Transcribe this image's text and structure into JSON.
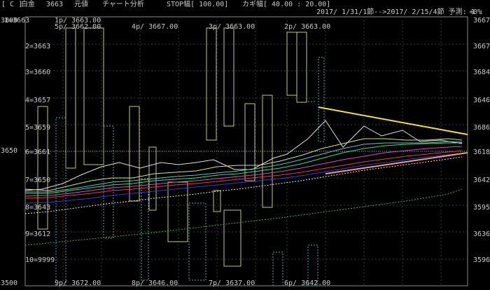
{
  "header": {
    "code": "[ C ]",
    "name": "白金",
    "number": "3663",
    "mode": "元値",
    "menu": "チャート分析",
    "stop": "STOP幅[ 100.00]",
    "kagi": "カギ幅[ 40.00 : 20.00]",
    "range": "2017/ 1/31/1節-->2017/ 2/15/4節 予測: 1 :",
    "percent": "+0%"
  },
  "left_axis": {
    "top": "3800",
    "mid": "3650",
    "bottom": "3500"
  },
  "row_labels": [
    "1=3663",
    "2=3663",
    "3=3660",
    "4=3657",
    "5=3659",
    "6=3661",
    "7=3650",
    "8=3643",
    "9=3612",
    "10=9999"
  ],
  "right_axis": [
    "3667",
    "3667",
    "3684",
    "3646",
    "3686",
    "3618",
    "3642",
    "3595",
    "3636",
    "3596"
  ],
  "top_annotations": [
    "1p/ 3663.00",
    "5p/ 3662.00",
    "4p/ 3667.00",
    "3p/ 3663.00",
    "2p/ 3663.00"
  ],
  "bottom_annotations": [
    "9p/ 3672.00",
    "8p/ 3646.00",
    "7p/ 3637.00",
    "6p/ 3642.00"
  ],
  "colors": {
    "background": "#000000",
    "grid": "#3a3a3a",
    "candle": "#c8c878",
    "dotted": "#4aa8b8",
    "trend_top": "#f0e040",
    "trend_bottom": "#f0a080"
  }
}
